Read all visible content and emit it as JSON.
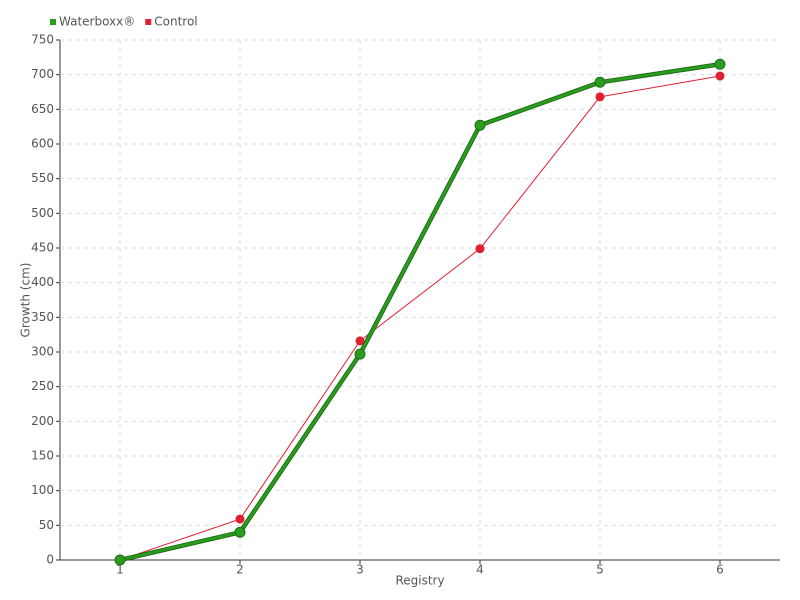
{
  "chart_data": {
    "type": "line",
    "x_label": "Registry",
    "y_label": "Growth (cm)",
    "x": [
      1,
      2,
      3,
      4,
      5,
      6
    ],
    "xlim": [
      0.5,
      6.5
    ],
    "xticks": [
      1,
      2,
      3,
      4,
      5,
      6
    ],
    "ylim": [
      0,
      750
    ],
    "yticks": [
      0,
      50,
      100,
      150,
      200,
      250,
      300,
      350,
      400,
      450,
      500,
      550,
      600,
      650,
      700,
      750
    ],
    "grid": true,
    "legend": "top-left",
    "series": [
      {
        "name": "Waterboxx®",
        "color": "#2a9d1e",
        "values": [
          0,
          40,
          297,
          627,
          689,
          715
        ]
      },
      {
        "name": "Control",
        "color": "#e02030",
        "values": [
          0,
          59,
          316,
          449,
          668,
          698
        ]
      }
    ]
  }
}
